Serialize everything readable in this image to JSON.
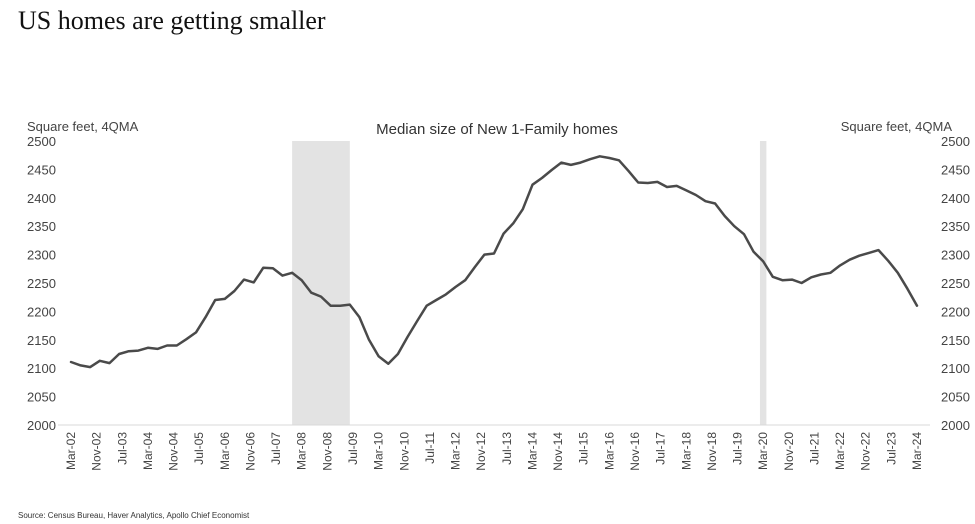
{
  "header": {
    "title": "US homes are getting smaller"
  },
  "footer": {
    "source": "Source: Census Bureau, Haver Analytics, Apollo Chief Economist"
  },
  "chart_data": {
    "type": "line",
    "title": "Median size of New 1-Family homes",
    "ylabel_left": "Square feet, 4QMA",
    "ylabel_right": "Square feet, 4QMA",
    "ylim": [
      2000,
      2500
    ],
    "yticks": [
      2000,
      2050,
      2100,
      2150,
      2200,
      2250,
      2300,
      2350,
      2400,
      2450,
      2500
    ],
    "grid": false,
    "x_tick_labels": [
      "Mar-02",
      "Nov-02",
      "Jul-03",
      "Mar-04",
      "Nov-04",
      "Jul-05",
      "Mar-06",
      "Nov-06",
      "Jul-07",
      "Mar-08",
      "Nov-08",
      "Jul-09",
      "Mar-10",
      "Nov-10",
      "Jul-11",
      "Mar-12",
      "Nov-12",
      "Jul-13",
      "Mar-14",
      "Nov-14",
      "Jul-15",
      "Mar-16",
      "Nov-16",
      "Jul-17",
      "Mar-18",
      "Nov-18",
      "Jul-19",
      "Mar-20",
      "Nov-20",
      "Jul-21",
      "Mar-22",
      "Nov-22",
      "Jul-23",
      "Mar-24"
    ],
    "recessions": [
      {
        "start": "Dec-07",
        "end": "Jun-09"
      },
      {
        "start": "Feb-20",
        "end": "Apr-20"
      }
    ],
    "series": [
      {
        "color": "#4a4a4a",
        "x": [
          "Mar-02",
          "Jun-02",
          "Sep-02",
          "Dec-02",
          "Mar-03",
          "Jun-03",
          "Sep-03",
          "Dec-03",
          "Mar-04",
          "Jun-04",
          "Sep-04",
          "Dec-04",
          "Mar-05",
          "Jun-05",
          "Sep-05",
          "Dec-05",
          "Mar-06",
          "Jun-06",
          "Sep-06",
          "Dec-06",
          "Mar-07",
          "Jun-07",
          "Sep-07",
          "Dec-07",
          "Mar-08",
          "Jun-08",
          "Sep-08",
          "Dec-08",
          "Mar-09",
          "Jun-09",
          "Sep-09",
          "Dec-09",
          "Mar-10",
          "Jun-10",
          "Sep-10",
          "Dec-10",
          "Mar-11",
          "Jun-11",
          "Sep-11",
          "Dec-11",
          "Mar-12",
          "Jun-12",
          "Sep-12",
          "Dec-12",
          "Mar-13",
          "Jun-13",
          "Sep-13",
          "Dec-13",
          "Mar-14",
          "Jun-14",
          "Sep-14",
          "Dec-14",
          "Mar-15",
          "Jun-15",
          "Sep-15",
          "Dec-15",
          "Mar-16",
          "Jun-16",
          "Sep-16",
          "Dec-16",
          "Mar-17",
          "Jun-17",
          "Sep-17",
          "Dec-17",
          "Mar-18",
          "Jun-18",
          "Sep-18",
          "Dec-18",
          "Mar-19",
          "Jun-19",
          "Sep-19",
          "Dec-19",
          "Mar-20",
          "Jun-20",
          "Sep-20",
          "Dec-20",
          "Mar-21",
          "Jun-21",
          "Sep-21",
          "Dec-21",
          "Mar-22",
          "Jun-22",
          "Sep-22",
          "Dec-22",
          "Mar-23",
          "Jun-23",
          "Sep-23",
          "Dec-23",
          "Mar-24"
        ],
        "values": [
          2111,
          2105,
          2102,
          2113,
          2109,
          2125,
          2130,
          2131,
          2136,
          2134,
          2140,
          2140,
          2151,
          2163,
          2190,
          2220,
          2222,
          2236,
          2256,
          2251,
          2277,
          2276,
          2263,
          2268,
          2255,
          2233,
          2226,
          2210,
          2210,
          2212,
          2190,
          2150,
          2121,
          2108,
          2125,
          2155,
          2183,
          2210,
          2220,
          2230,
          2243,
          2255,
          2278,
          2300,
          2302,
          2337,
          2355,
          2380,
          2423,
          2435,
          2449,
          2462,
          2458,
          2462,
          2468,
          2473,
          2470,
          2466,
          2447,
          2427,
          2426,
          2428,
          2419,
          2421,
          2413,
          2405,
          2394,
          2390,
          2368,
          2350,
          2336,
          2305,
          2288,
          2261,
          2255,
          2256,
          2250,
          2260,
          2265,
          2268,
          2281,
          2291,
          2298,
          2303,
          2308,
          2289,
          2268,
          2240,
          2210
        ]
      }
    ]
  }
}
